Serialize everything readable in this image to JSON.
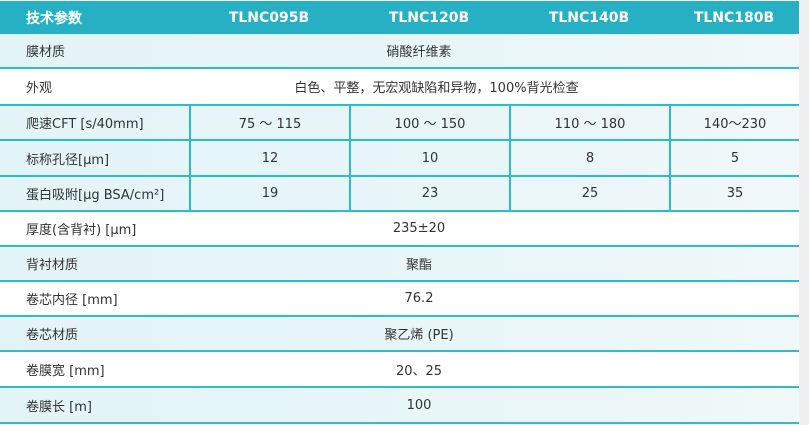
{
  "header": {
    "label": "技术参数",
    "models": [
      "TLNC095B",
      "TLNC120B",
      "TLNC140B",
      "TLNC180B"
    ]
  },
  "rows": [
    {
      "label": "膜材质",
      "value": "硝酸纤维素"
    },
    {
      "label": "外观",
      "value": "白色、平整，无宏观缺陷和异物，100%背光检查"
    },
    {
      "label": "爬速CFT [s/40mm]",
      "values": [
        "75 ～ 115",
        "100 ～ 150",
        "110 ～ 180",
        "140～230"
      ]
    },
    {
      "label": "标称孔径[µm]",
      "values": [
        "12",
        "10",
        "8",
        "5"
      ]
    },
    {
      "label": "蛋白吸附[µg BSA/cm²]",
      "values": [
        "19",
        "23",
        "25",
        "35"
      ]
    },
    {
      "label": "厚度(含背衬) [µm]",
      "value": "235±20"
    },
    {
      "label": "背衬材质",
      "value": "聚酯"
    },
    {
      "label": "卷芯内径 [mm]",
      "value": "76.2"
    },
    {
      "label": "卷芯材质",
      "value": "聚乙烯 (PE)"
    },
    {
      "label": "卷膜宽 [mm]",
      "value": "20、25"
    },
    {
      "label": "卷膜长 [m]",
      "value": "100"
    }
  ],
  "colors": {
    "header": "#26b0c3",
    "border": "#2bbcce",
    "stripe": "#e3f4f7"
  }
}
